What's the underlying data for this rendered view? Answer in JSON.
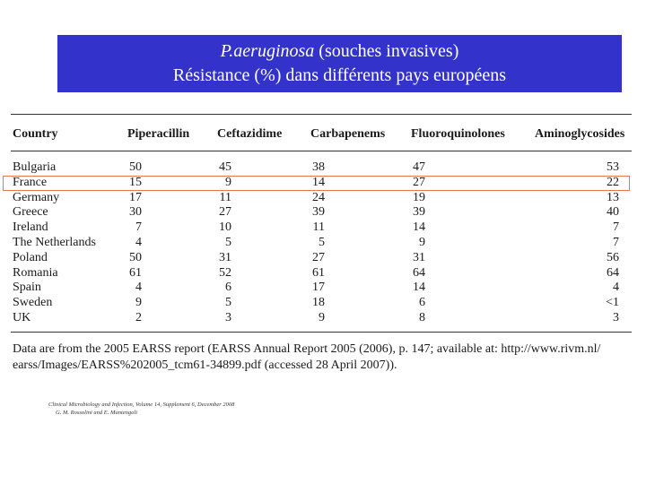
{
  "slide": {
    "title_italic": "P.aeruginosa",
    "title_rest": " (souches invasives)",
    "subtitle": "Résistance (%) dans différents pays européens"
  },
  "table": {
    "headers": [
      "Country",
      "Piperacillin",
      "Ceftazidime",
      "Carbapenems",
      "Fluoroquinolones",
      "Aminoglycosides"
    ],
    "rows": [
      [
        "Bulgaria",
        "50",
        "45",
        "38",
        "47",
        "53"
      ],
      [
        "France",
        "15",
        "9",
        "14",
        "27",
        "22"
      ],
      [
        "Germany",
        "17",
        "11",
        "24",
        "19",
        "13"
      ],
      [
        "Greece",
        "30",
        "27",
        "39",
        "39",
        "40"
      ],
      [
        "Ireland",
        "7",
        "10",
        "11",
        "14",
        "7"
      ],
      [
        "The Netherlands",
        "4",
        "5",
        "5",
        "9",
        "7"
      ],
      [
        "Poland",
        "50",
        "31",
        "27",
        "31",
        "56"
      ],
      [
        "Romania",
        "61",
        "52",
        "61",
        "64",
        "64"
      ],
      [
        "Spain",
        "4",
        "6",
        "17",
        "14",
        "4"
      ],
      [
        "Sweden",
        "9",
        "5",
        "18",
        "6",
        "<1"
      ],
      [
        "UK",
        "2",
        "3",
        "9",
        "8",
        "3"
      ]
    ],
    "highlighted_row": "France"
  },
  "note": {
    "line1": "Data are from the 2005 EARSS report (EARSS Annual Report 2005 (2006), p. 147; available at: http://www.rivm.nl/",
    "line2": "earss/Images/EARSS%202005_tcm61-34899.pdf (accessed 28 April 2007))."
  },
  "citation": {
    "line1": "Clinical Microbiology and Infection, Volume 14, Supplement 6, December 2008",
    "line2": "G. M. Rossolini and E. Mantengoli"
  },
  "colors": {
    "title_bg": "#3333cc",
    "highlight": "#e8774a"
  }
}
